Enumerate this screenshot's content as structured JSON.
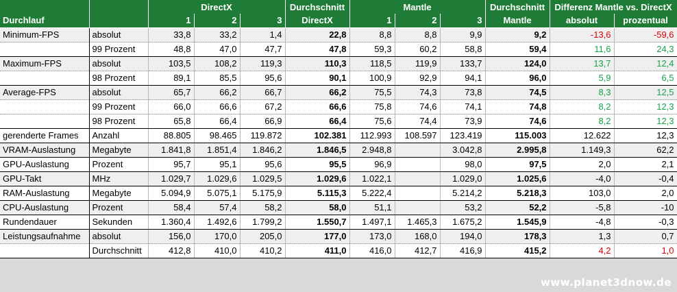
{
  "header": {
    "row1": [
      "",
      "",
      "",
      "DirectX",
      "",
      "Durchschnitt",
      "",
      "Mantle",
      "",
      "Durchschnitt",
      "Differenz Mantle vs. DirectX",
      ""
    ],
    "row2": [
      "Durchlauf",
      "",
      "1",
      "2",
      "3",
      "DirectX",
      "1",
      "2",
      "3",
      "Mantle",
      "absolut",
      "prozentual"
    ]
  },
  "rows": [
    {
      "cat": "Minimum-FPS",
      "sub": "absolut",
      "d1": "33,8",
      "d2": "33,2",
      "d3": "1,4",
      "davg": "22,8",
      "m1": "8,8",
      "m2": "8,8",
      "m3": "9,9",
      "mavg": "9,2",
      "abs": "-13,6",
      "pct": "-59,6",
      "color": "red"
    },
    {
      "cat": "",
      "sub": "99 Prozent",
      "d1": "48,8",
      "d2": "47,0",
      "d3": "47,7",
      "davg": "47,8",
      "m1": "59,3",
      "m2": "60,2",
      "m3": "58,8",
      "mavg": "59,4",
      "abs": "11,6",
      "pct": "24,3",
      "color": "green"
    },
    {
      "cat": "Maximum-FPS",
      "sub": "absolut",
      "d1": "103,5",
      "d2": "108,2",
      "d3": "119,3",
      "davg": "110,3",
      "m1": "118,5",
      "m2": "119,9",
      "m3": "133,7",
      "mavg": "124,0",
      "abs": "13,7",
      "pct": "12,4",
      "color": "green"
    },
    {
      "cat": "",
      "sub": "98 Prozent",
      "d1": "89,1",
      "d2": "85,5",
      "d3": "95,6",
      "davg": "90,1",
      "m1": "100,9",
      "m2": "92,9",
      "m3": "94,1",
      "mavg": "96,0",
      "abs": "5,9",
      "pct": "6,5",
      "color": "green"
    },
    {
      "cat": "Average-FPS",
      "sub": "absolut",
      "d1": "65,7",
      "d2": "66,2",
      "d3": "66,7",
      "davg": "66,2",
      "m1": "75,5",
      "m2": "74,3",
      "m3": "73,8",
      "mavg": "74,5",
      "abs": "8,3",
      "pct": "12,5",
      "color": "green"
    },
    {
      "cat": "",
      "sub": "99 Prozent",
      "d1": "66,0",
      "d2": "66,6",
      "d3": "67,2",
      "davg": "66,6",
      "m1": "75,8",
      "m2": "74,6",
      "m3": "74,1",
      "mavg": "74,8",
      "abs": "8,2",
      "pct": "12,3",
      "color": "green"
    },
    {
      "cat": "",
      "sub": "98 Prozent",
      "d1": "65,8",
      "d2": "66,4",
      "d3": "66,9",
      "davg": "66,4",
      "m1": "75,6",
      "m2": "74,4",
      "m3": "73,9",
      "mavg": "74,6",
      "abs": "8,2",
      "pct": "12,3",
      "color": "green"
    },
    {
      "cat": "gerenderte Frames",
      "sub": "Anzahl",
      "d1": "88.805",
      "d2": "98.465",
      "d3": "119.872",
      "davg": "102.381",
      "m1": "112.993",
      "m2": "108.597",
      "m3": "123.419",
      "mavg": "115.003",
      "abs": "12.622",
      "pct": "12,3",
      "color": ""
    },
    {
      "cat": "VRAM-Auslastung",
      "sub": "Megabyte",
      "d1": "1.841,8",
      "d2": "1.851,4",
      "d3": "1.846,2",
      "davg": "1.846,5",
      "m1": "2.948,8",
      "m2": "",
      "m3": "3.042,8",
      "mavg": "2.995,8",
      "abs": "1.149,3",
      "pct": "62,2",
      "color": ""
    },
    {
      "cat": "GPU-Auslastung",
      "sub": "Prozent",
      "d1": "95,7",
      "d2": "95,1",
      "d3": "95,6",
      "davg": "95,5",
      "m1": "96,9",
      "m2": "",
      "m3": "98,0",
      "mavg": "97,5",
      "abs": "2,0",
      "pct": "2,1",
      "color": ""
    },
    {
      "cat": "GPU-Takt",
      "sub": "MHz",
      "d1": "1.029,7",
      "d2": "1.029,6",
      "d3": "1.029,5",
      "davg": "1.029,6",
      "m1": "1.022,1",
      "m2": "",
      "m3": "1.029,0",
      "mavg": "1.025,6",
      "abs": "-4,0",
      "pct": "-0,4",
      "color": ""
    },
    {
      "cat": "RAM-Auslastung",
      "sub": "Megabyte",
      "d1": "5.094,9",
      "d2": "5.075,1",
      "d3": "5.175,9",
      "davg": "5.115,3",
      "m1": "5.222,4",
      "m2": "",
      "m3": "5.214,2",
      "mavg": "5.218,3",
      "abs": "103,0",
      "pct": "2,0",
      "color": ""
    },
    {
      "cat": "CPU-Auslastung",
      "sub": "Prozent",
      "d1": "58,4",
      "d2": "57,4",
      "d3": "58,2",
      "davg": "58,0",
      "m1": "51,1",
      "m2": "",
      "m3": "53,2",
      "mavg": "52,2",
      "abs": "-5,8",
      "pct": "-10",
      "color": ""
    },
    {
      "cat": "Rundendauer",
      "sub": "Sekunden",
      "d1": "1.360,4",
      "d2": "1.492,6",
      "d3": "1.799,2",
      "davg": "1.550,7",
      "m1": "1.497,1",
      "m2": "1.465,3",
      "m3": "1.675,2",
      "mavg": "1.545,9",
      "abs": "-4,8",
      "pct": "-0,3",
      "color": ""
    },
    {
      "cat": "Leistungsaufnahme",
      "sub": "absolut",
      "d1": "156,0",
      "d2": "170,0",
      "d3": "205,0",
      "davg": "177,0",
      "m1": "173,0",
      "m2": "168,0",
      "m3": "194,0",
      "mavg": "178,3",
      "abs": "1,3",
      "pct": "0,7",
      "color": ""
    },
    {
      "cat": "",
      "sub": "Durchschnitt",
      "d1": "412,8",
      "d2": "410,0",
      "d3": "410,2",
      "davg": "411,0",
      "m1": "416,0",
      "m2": "412,7",
      "m3": "416,9",
      "mavg": "415,2",
      "abs": "4,2",
      "pct": "1,0",
      "color": "red"
    }
  ],
  "row_backgrounds": [
    "grey",
    "white",
    "grey",
    "white",
    "grey",
    "white",
    "white",
    "white",
    "grey",
    "white",
    "grey",
    "white",
    "grey",
    "white",
    "grey",
    "white"
  ],
  "group_ends": [
    1,
    3,
    6,
    7,
    8,
    9,
    10,
    11,
    12,
    13,
    15
  ],
  "footer": {
    "brand": "www.planet3dnow.de"
  }
}
